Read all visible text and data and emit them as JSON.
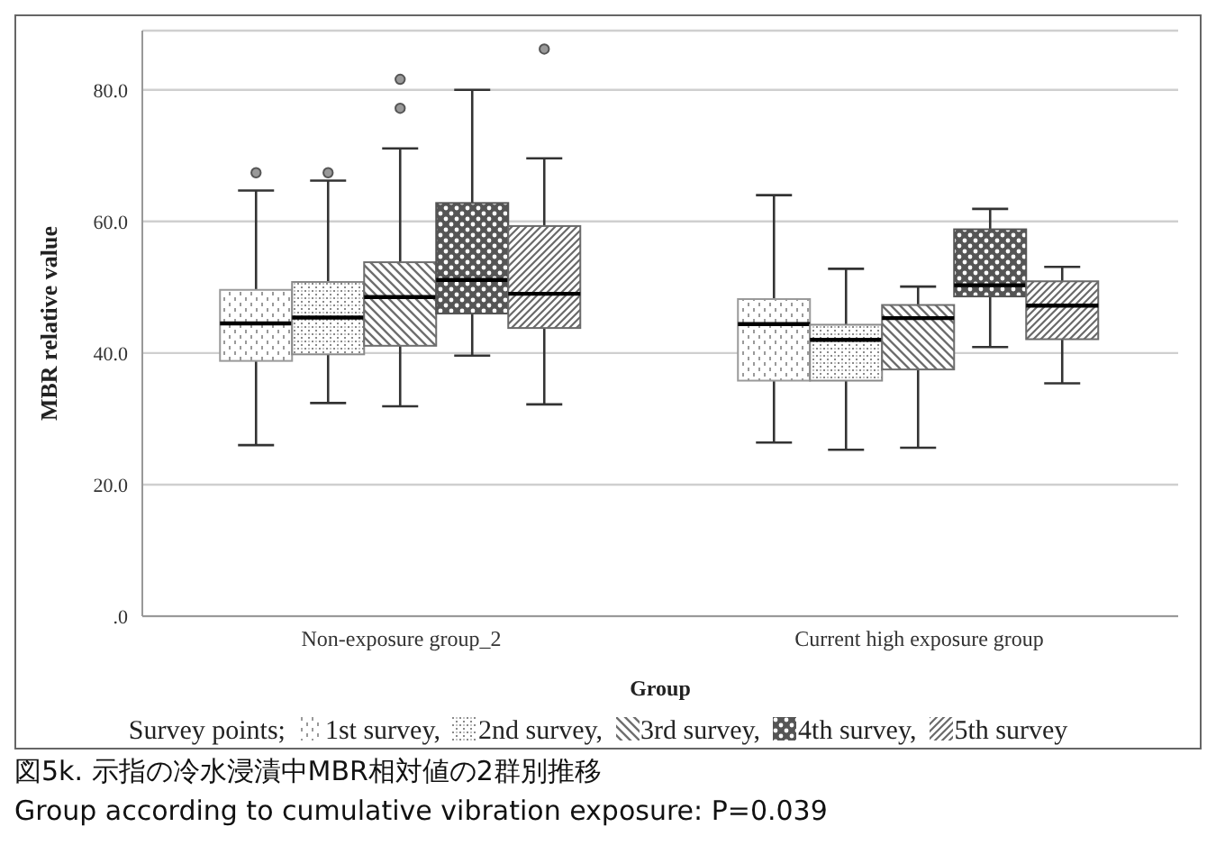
{
  "chart_data": {
    "type": "box",
    "title": "図5k. 示指の冷水浸漬中MBR相対値の2群別推移",
    "annotations": [
      "Group according to cumulative vibration exposure: P=0.039"
    ],
    "xlabel": "Group",
    "ylabel": "MBR relative value",
    "legend_title": "Survey points;",
    "legend": "bottom",
    "grid": "y",
    "categories": [
      "Non-exposure group_2",
      "Current high exposure group"
    ],
    "ylim": [
      0,
      89
    ],
    "yticks": [
      {
        "value": 0,
        "label": ".0"
      },
      {
        "value": 20,
        "label": "20.0"
      },
      {
        "value": 40,
        "label": "40.0"
      },
      {
        "value": 60,
        "label": "60.0"
      },
      {
        "value": 80,
        "label": "80.0"
      }
    ],
    "series": [
      {
        "name": "1st survey,",
        "color": "#9a9a9a",
        "boxes": [
          {
            "low": 26.0,
            "q1": 38.8,
            "median": 44.5,
            "q3": 49.6,
            "high": 64.7,
            "outliers": [
              67.4
            ]
          },
          {
            "low": 26.4,
            "q1": 35.8,
            "median": 44.4,
            "q3": 48.2,
            "high": 64.0
          }
        ]
      },
      {
        "name": "2nd survey,",
        "color": "#8a8a8a",
        "boxes": [
          {
            "low": 32.4,
            "q1": 39.8,
            "median": 45.4,
            "q3": 50.8,
            "high": 66.2,
            "outliers": [
              67.4
            ]
          },
          {
            "low": 25.3,
            "q1": 35.8,
            "median": 42.0,
            "q3": 44.3,
            "high": 52.8
          }
        ]
      },
      {
        "name": "3rd survey,",
        "color": "#6e6e6e",
        "boxes": [
          {
            "low": 31.9,
            "q1": 41.1,
            "median": 48.5,
            "q3": 53.8,
            "high": 71.1,
            "outliers": [
              77.2,
              81.6
            ]
          },
          {
            "low": 25.6,
            "q1": 37.5,
            "median": 45.3,
            "q3": 47.3,
            "high": 50.1
          }
        ]
      },
      {
        "name": "4th survey,",
        "color": "#555555",
        "boxes": [
          {
            "low": 39.6,
            "q1": 46.0,
            "median": 51.1,
            "q3": 62.8,
            "high": 80.0
          },
          {
            "low": 40.9,
            "q1": 48.6,
            "median": 50.3,
            "q3": 58.8,
            "high": 61.9
          }
        ]
      },
      {
        "name": "5th survey",
        "color": "#6a6a6a",
        "boxes": [
          {
            "low": 32.2,
            "q1": 43.8,
            "median": 49.0,
            "q3": 59.3,
            "high": 69.6,
            "outliers": [
              86.2
            ]
          },
          {
            "low": 35.4,
            "q1": 42.1,
            "median": 47.2,
            "q3": 50.9,
            "high": 53.1
          }
        ]
      }
    ]
  }
}
